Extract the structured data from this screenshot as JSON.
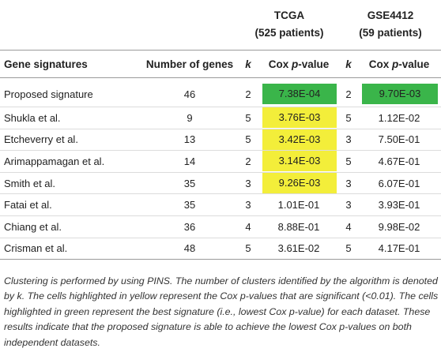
{
  "table": {
    "groups": {
      "tcga_name": "TCGA",
      "tcga_patients": "(525 patients)",
      "gse_name": "GSE4412",
      "gse_patients": "(59 patients)"
    },
    "headers": {
      "signature": "Gene signatures",
      "num_genes": "Number of genes",
      "k_tcga": "k",
      "cox_prefix_tcga": "Cox ",
      "cox_p_tcga": "p",
      "cox_suffix_tcga": "-value",
      "k_gse": "k",
      "cox_prefix_gse": "Cox ",
      "cox_p_gse": "p",
      "cox_suffix_gse": "-value"
    },
    "rows": [
      {
        "signature": "Proposed signature",
        "num_genes": "46",
        "k_tcga": "2",
        "cox_tcga": "7.38E-04",
        "tcga_highlight": "green",
        "k_gse": "2",
        "cox_gse": "9.70E-03",
        "gse_highlight": "green"
      },
      {
        "signature": "Shukla et al.",
        "num_genes": "9",
        "k_tcga": "5",
        "cox_tcga": "3.76E-03",
        "tcga_highlight": "yellow",
        "k_gse": "5",
        "cox_gse": "1.12E-02",
        "gse_highlight": "none"
      },
      {
        "signature": "Etcheverry et al.",
        "num_genes": "13",
        "k_tcga": "5",
        "cox_tcga": "3.42E-03",
        "tcga_highlight": "yellow",
        "k_gse": "3",
        "cox_gse": "7.50E-01",
        "gse_highlight": "none"
      },
      {
        "signature": "Arimappamagan et al.",
        "num_genes": "14",
        "k_tcga": "2",
        "cox_tcga": "3.14E-03",
        "tcga_highlight": "yellow",
        "k_gse": "5",
        "cox_gse": "4.67E-01",
        "gse_highlight": "none"
      },
      {
        "signature": "Smith et al.",
        "num_genes": "35",
        "k_tcga": "3",
        "cox_tcga": "9.26E-03",
        "tcga_highlight": "yellow",
        "k_gse": "3",
        "cox_gse": "6.07E-01",
        "gse_highlight": "none"
      },
      {
        "signature": "Fatai et al.",
        "num_genes": "35",
        "k_tcga": "3",
        "cox_tcga": "1.01E-01",
        "tcga_highlight": "none",
        "k_gse": "3",
        "cox_gse": "3.93E-01",
        "gse_highlight": "none"
      },
      {
        "signature": "Chiang et al.",
        "num_genes": "36",
        "k_tcga": "4",
        "cox_tcga": "8.88E-01",
        "tcga_highlight": "none",
        "k_gse": "4",
        "cox_gse": "9.98E-02",
        "gse_highlight": "none"
      },
      {
        "signature": "Crisman et al.",
        "num_genes": "48",
        "k_tcga": "5",
        "cox_tcga": "3.61E-02",
        "tcga_highlight": "none",
        "k_gse": "5",
        "cox_gse": "4.17E-01",
        "gse_highlight": "none"
      }
    ]
  },
  "footnote": "Clustering is performed by using PINS. The number of clusters identified by the algorithm is denoted by k. The cells highlighted in yellow represent the Cox p-values that are significant (<0.01). The cells highlighted in green represent the best signature (i.e., lowest Cox p-value) for each dataset. These results indicate that the proposed signature is able to achieve the lowest Cox p-values on both independent datasets.",
  "colors": {
    "green_highlight": "#3ab54a",
    "yellow_highlight": "#f3ee3a",
    "rule": "#9a9a9a"
  }
}
